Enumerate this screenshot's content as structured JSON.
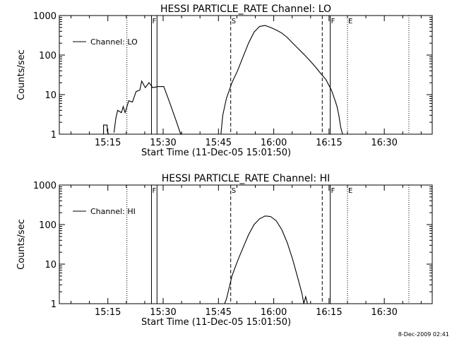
{
  "footer": {
    "timestamp": "8-Dec-2009 02:41"
  },
  "chart_data": [
    {
      "type": "line",
      "title": "HESSI PARTICLE_RATE Channel: LO",
      "xlabel": "Start Time (11-Dec-05 15:01:50)",
      "ylabel": "Counts/sec",
      "y_scale": "log",
      "ylim": [
        1,
        1000
      ],
      "xlim": [
        "15:01:50",
        "16:43:00"
      ],
      "xticks": [
        "15:15",
        "15:30",
        "15:45",
        "16:00",
        "16:15",
        "16:30"
      ],
      "yticks": [
        "1",
        "10",
        "100",
        "1000"
      ],
      "legend": {
        "position": "top-left",
        "entries": [
          "Channel: LO"
        ]
      },
      "markers": [
        {
          "label": "",
          "time": "15:01:50",
          "style": "dotted"
        },
        {
          "label": "",
          "time": "15:20:10",
          "style": "dotted"
        },
        {
          "label": "F",
          "time": "15:26:50",
          "style": "solid"
        },
        {
          "label": "",
          "time": "15:28:20",
          "style": "solid"
        },
        {
          "label": "S",
          "time": "15:48:20",
          "style": "dashed"
        },
        {
          "label": "",
          "time": "16:13:10",
          "style": "dashed"
        },
        {
          "label": "F",
          "time": "16:15:20",
          "style": "solid"
        },
        {
          "label": "E",
          "time": "16:20:00",
          "style": "dotted"
        },
        {
          "label": "",
          "time": "16:36:40",
          "style": "dotted"
        }
      ],
      "series": [
        {
          "name": "Channel: LO",
          "segments": [
            [
              [
                "15:13:50",
                0.5
              ],
              [
                "15:13:50",
                1.7
              ],
              [
                "15:14:50",
                1.7
              ],
              [
                "15:14:50",
                1.2
              ],
              [
                "15:15:10",
                1.0
              ],
              [
                "15:15:10",
                0.5
              ]
            ],
            [
              [
                "15:16:40",
                1.1
              ],
              [
                "15:17:10",
                2.5
              ],
              [
                "15:17:40",
                4.0
              ],
              [
                "15:18:40",
                3.5
              ],
              [
                "15:19:10",
                5.0
              ],
              [
                "15:19:40",
                3.5
              ],
              [
                "15:20:40",
                7.0
              ],
              [
                "15:21:40",
                6.5
              ],
              [
                "15:22:40",
                12.0
              ],
              [
                "15:23:40",
                13.0
              ],
              [
                "15:24:10",
                22.0
              ],
              [
                "15:25:10",
                15.0
              ],
              [
                "15:26:10",
                20.0
              ],
              [
                "15:27:10",
                15.0
              ],
              [
                "15:28:40",
                16.0
              ],
              [
                "15:30:10",
                16.0
              ],
              [
                "15:31:10",
                9.0
              ],
              [
                "15:32:10",
                5.0
              ],
              [
                "15:33:40",
                2.0
              ],
              [
                "15:34:40",
                1.05
              ],
              [
                "15:35:10",
                0.5
              ]
            ],
            [
              [
                "15:45:10",
                0.5
              ],
              [
                "15:45:40",
                1.0
              ],
              [
                "15:46:10",
                3.0
              ],
              [
                "15:47:10",
                8.0
              ],
              [
                "15:48:40",
                20.0
              ],
              [
                "15:50:10",
                40.0
              ],
              [
                "15:51:40",
                90.0
              ],
              [
                "15:53:10",
                200.0
              ],
              [
                "15:54:40",
                380.0
              ],
              [
                "15:56:10",
                530.0
              ],
              [
                "15:57:40",
                560.0
              ],
              [
                "15:59:10",
                500.0
              ],
              [
                "16:00:40",
                430.0
              ],
              [
                "16:02:10",
                360.0
              ],
              [
                "16:03:40",
                280.0
              ],
              [
                "16:05:10",
                200.0
              ],
              [
                "16:06:40",
                145.0
              ],
              [
                "16:08:10",
                105.0
              ],
              [
                "16:09:40",
                75.0
              ],
              [
                "16:11:10",
                52.0
              ],
              [
                "16:12:40",
                35.0
              ],
              [
                "16:14:10",
                24.0
              ],
              [
                "16:15:40",
                13.0
              ],
              [
                "16:16:40",
                7.0
              ],
              [
                "16:17:10",
                5.0
              ],
              [
                "16:17:40",
                3.0
              ],
              [
                "16:18:10",
                1.5
              ],
              [
                "16:18:40",
                0.5
              ]
            ]
          ]
        }
      ]
    },
    {
      "type": "line",
      "title": "HESSI PARTICLE_RATE Channel: HI",
      "xlabel": "Start Time (11-Dec-05 15:01:50)",
      "ylabel": "Counts/sec",
      "y_scale": "log",
      "ylim": [
        1,
        1000
      ],
      "xlim": [
        "15:01:50",
        "16:43:00"
      ],
      "xticks": [
        "15:15",
        "15:30",
        "15:45",
        "16:00",
        "16:15",
        "16:30"
      ],
      "yticks": [
        "1",
        "10",
        "100",
        "1000"
      ],
      "legend": {
        "position": "top-left",
        "entries": [
          "Channel: HI"
        ]
      },
      "markers": [
        {
          "label": "",
          "time": "15:01:50",
          "style": "dotted"
        },
        {
          "label": "",
          "time": "15:20:10",
          "style": "dotted"
        },
        {
          "label": "F",
          "time": "15:26:50",
          "style": "solid"
        },
        {
          "label": "",
          "time": "15:28:20",
          "style": "solid"
        },
        {
          "label": "S",
          "time": "15:48:20",
          "style": "dashed"
        },
        {
          "label": "",
          "time": "16:13:10",
          "style": "dashed"
        },
        {
          "label": "F",
          "time": "16:15:20",
          "style": "solid"
        },
        {
          "label": "E",
          "time": "16:20:00",
          "style": "dotted"
        },
        {
          "label": "",
          "time": "16:36:40",
          "style": "dotted"
        }
      ],
      "series": [
        {
          "name": "Channel: HI",
          "segments": [
            [
              [
                "15:46:40",
                0.5
              ],
              [
                "15:47:10",
                1.3
              ],
              [
                "15:48:40",
                5.0
              ],
              [
                "15:50:10",
                12.0
              ],
              [
                "15:51:40",
                26.0
              ],
              [
                "15:53:10",
                55.0
              ],
              [
                "15:54:40",
                100.0
              ],
              [
                "15:56:10",
                140.0
              ],
              [
                "15:57:40",
                165.0
              ],
              [
                "15:59:10",
                160.0
              ],
              [
                "16:00:40",
                125.0
              ],
              [
                "16:02:10",
                75.0
              ],
              [
                "16:03:40",
                35.0
              ],
              [
                "16:05:10",
                13.0
              ],
              [
                "16:06:40",
                4.0
              ],
              [
                "16:07:40",
                1.8
              ],
              [
                "16:08:10",
                0.9
              ],
              [
                "16:08:40",
                1.5
              ],
              [
                "16:09:10",
                0.5
              ]
            ]
          ]
        }
      ]
    }
  ]
}
